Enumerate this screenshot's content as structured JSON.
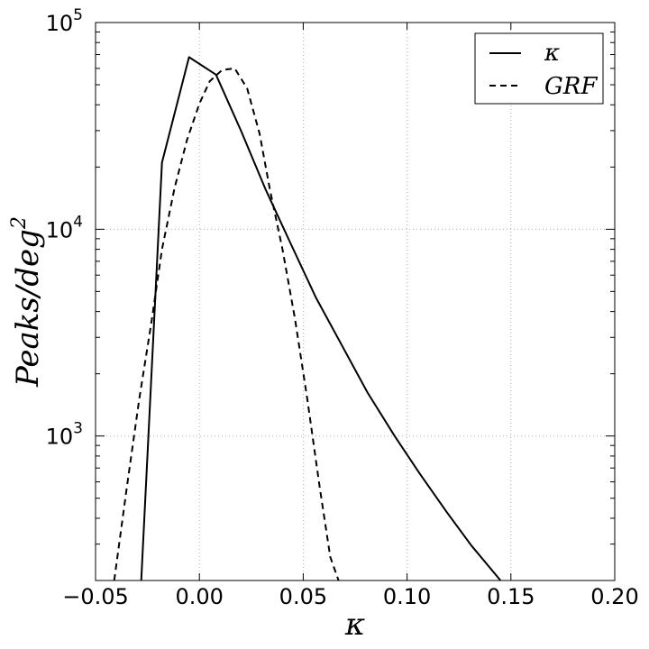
{
  "chart_data": {
    "type": "line",
    "xlabel": "κ",
    "ylabel": "Peaks/deg",
    "ylabel_superscript": "2",
    "xlim": [
      -0.05,
      0.2
    ],
    "ylim": [
      200,
      100000
    ],
    "yscale": "log",
    "grid": true,
    "legend_position": "top-right",
    "x_ticks": [
      -0.05,
      0.0,
      0.05,
      0.1,
      0.15,
      0.2
    ],
    "x_tick_labels": [
      "−0.05",
      "0.00",
      "0.05",
      "0.10",
      "0.15",
      "0.20"
    ],
    "y_ticks": [
      {
        "value": 1000,
        "base": "10",
        "exp": "3"
      },
      {
        "value": 10000,
        "base": "10",
        "exp": "4"
      },
      {
        "value": 100000,
        "base": "10",
        "exp": "5"
      }
    ],
    "series": [
      {
        "name": "κ",
        "style": "solid",
        "color": "#000000",
        "x": [
          -0.028,
          -0.018,
          -0.005,
          0.008,
          0.02,
          0.032,
          0.044,
          0.056,
          0.069,
          0.081,
          0.094,
          0.106,
          0.119,
          0.131,
          0.145
        ],
        "y": [
          200,
          21000,
          68000,
          56000,
          30000,
          15500,
          8500,
          4700,
          2700,
          1620,
          1000,
          660,
          430,
          295,
          200
        ]
      },
      {
        "name": "GRF",
        "style": "dashed",
        "color": "#000000",
        "x": [
          -0.041,
          -0.035,
          -0.029,
          -0.023,
          -0.018,
          -0.012,
          -0.006,
          0.0,
          0.005,
          0.011,
          0.017,
          0.023,
          0.029,
          0.034,
          0.04,
          0.046,
          0.052,
          0.058,
          0.063,
          0.067
        ],
        "y": [
          200,
          560,
          1500,
          3600,
          8000,
          15800,
          27000,
          40500,
          52000,
          59000,
          60000,
          48000,
          29000,
          15500,
          8000,
          3700,
          1500,
          560,
          260,
          200
        ]
      }
    ]
  }
}
